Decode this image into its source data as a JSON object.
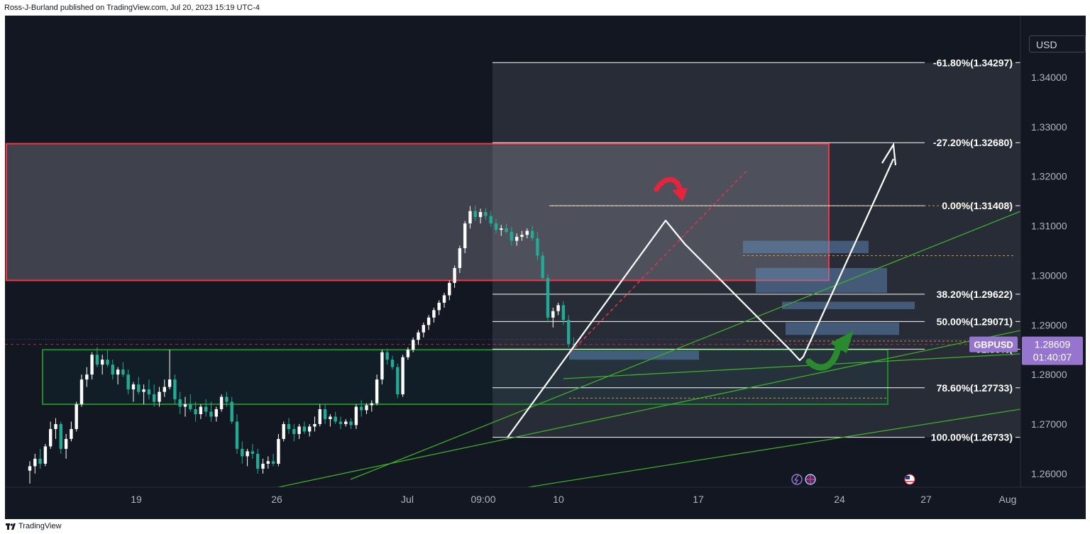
{
  "header": {
    "publisher": "Ross-J-Burland published on TradingView.com, Jul 20, 2023 15:19 UTC-4"
  },
  "footer": {
    "brand": "TradingView"
  },
  "currency_button": "USD",
  "symbol_tag": {
    "symbol": "GBPUSD",
    "price": "1.28609",
    "countdown": "01:40:07"
  },
  "colors": {
    "background": "#131722",
    "up": "#ffffff",
    "down": "#22ab94",
    "fib": "#ffffff",
    "zone_red": "#f23645",
    "zone_green": "#089981",
    "price_tag": "#9575cd"
  },
  "chart_data": {
    "type": "candlestick",
    "instrument": "GBPUSD",
    "ylim": [
      1.255,
      1.35
    ],
    "y_ticks": [
      {
        "value": 1.26,
        "label": "1.26000"
      },
      {
        "value": 1.27,
        "label": "1.27000"
      },
      {
        "value": 1.28,
        "label": "1.28000"
      },
      {
        "value": 1.29,
        "label": "1.29000"
      },
      {
        "value": 1.3,
        "label": "1.30000"
      },
      {
        "value": 1.31,
        "label": "1.31000"
      },
      {
        "value": 1.32,
        "label": "1.32000"
      },
      {
        "value": 1.33,
        "label": "1.33000"
      },
      {
        "value": 1.34,
        "label": "1.34000"
      }
    ],
    "x_ticks": [
      "19",
      "26",
      "Jul",
      "09:00",
      "10",
      "17",
      "24",
      "27",
      "Aug"
    ],
    "current_price": 1.28609,
    "fib_levels": [
      {
        "label": "-61.80%(1.34297)",
        "value": 1.34297
      },
      {
        "label": "-27.20%(1.32680)",
        "value": 1.3268
      },
      {
        "label": "0.00%(1.31408)",
        "value": 1.31408
      },
      {
        "label": "38.20%(1.29622)",
        "value": 1.29622
      },
      {
        "label": "50.00%(1.29071)",
        "value": 1.29071
      },
      {
        "label": "61.80%(",
        "value": 1.28512
      },
      {
        "label": "78.60%(1.27733)",
        "value": 1.27733
      },
      {
        "label": "100.00%(1.26733)",
        "value": 1.26733
      }
    ],
    "zones": [
      {
        "kind": "red",
        "top": 1.3266,
        "bottom": 1.299
      },
      {
        "kind": "green",
        "top": 1.285,
        "bottom": 1.274
      }
    ],
    "candles": [
      [
        1.2606,
        1.2625,
        1.258,
        1.2615
      ],
      [
        1.2615,
        1.264,
        1.26,
        1.263
      ],
      [
        1.263,
        1.265,
        1.261,
        1.262
      ],
      [
        1.262,
        1.266,
        1.2615,
        1.2655
      ],
      [
        1.2655,
        1.2705,
        1.265,
        1.269
      ],
      [
        1.269,
        1.2712,
        1.267,
        1.27
      ],
      [
        1.27,
        1.2705,
        1.264,
        1.265
      ],
      [
        1.265,
        1.268,
        1.263,
        1.267
      ],
      [
        1.267,
        1.2705,
        1.2665,
        1.269
      ],
      [
        1.269,
        1.2745,
        1.2685,
        1.274
      ],
      [
        1.274,
        1.28,
        1.2735,
        1.279
      ],
      [
        1.279,
        1.2815,
        1.2775,
        1.28
      ],
      [
        1.28,
        1.2845,
        1.279,
        1.284
      ],
      [
        1.284,
        1.2855,
        1.2815,
        1.282
      ],
      [
        1.282,
        1.284,
        1.28,
        1.283
      ],
      [
        1.283,
        1.285,
        1.2815,
        1.282
      ],
      [
        1.282,
        1.283,
        1.279,
        1.28
      ],
      [
        1.28,
        1.2815,
        1.278,
        1.281
      ],
      [
        1.281,
        1.2825,
        1.2795,
        1.28
      ],
      [
        1.28,
        1.281,
        1.276,
        1.277
      ],
      [
        1.277,
        1.2785,
        1.2745,
        1.278
      ],
      [
        1.278,
        1.2795,
        1.276,
        1.2765
      ],
      [
        1.2765,
        1.278,
        1.274,
        1.277
      ],
      [
        1.277,
        1.279,
        1.275,
        1.276
      ],
      [
        1.276,
        1.278,
        1.2735,
        1.2745
      ],
      [
        1.2745,
        1.2775,
        1.2735,
        1.2765
      ],
      [
        1.2765,
        1.279,
        1.2755,
        1.2775
      ],
      [
        1.2775,
        1.285,
        1.277,
        1.279
      ],
      [
        1.279,
        1.28,
        1.274,
        1.275
      ],
      [
        1.275,
        1.2765,
        1.272,
        1.2735
      ],
      [
        1.2735,
        1.2755,
        1.2715,
        1.274
      ],
      [
        1.274,
        1.276,
        1.2725,
        1.273
      ],
      [
        1.273,
        1.2745,
        1.2705,
        1.272
      ],
      [
        1.272,
        1.274,
        1.271,
        1.2735
      ],
      [
        1.2735,
        1.275,
        1.2715,
        1.2725
      ],
      [
        1.2725,
        1.2745,
        1.2705,
        1.2715
      ],
      [
        1.2715,
        1.2735,
        1.2705,
        1.273
      ],
      [
        1.273,
        1.276,
        1.2725,
        1.2755
      ],
      [
        1.2755,
        1.2765,
        1.2735,
        1.2745
      ],
      [
        1.2745,
        1.2755,
        1.27,
        1.2705
      ],
      [
        1.2705,
        1.272,
        1.264,
        1.265
      ],
      [
        1.265,
        1.2665,
        1.262,
        1.2635
      ],
      [
        1.2635,
        1.265,
        1.2615,
        1.2645
      ],
      [
        1.2645,
        1.266,
        1.263,
        1.264
      ],
      [
        1.264,
        1.265,
        1.26,
        1.261
      ],
      [
        1.261,
        1.263,
        1.26,
        1.262
      ],
      [
        1.262,
        1.2635,
        1.261,
        1.2625
      ],
      [
        1.2625,
        1.264,
        1.2615,
        1.262
      ],
      [
        1.262,
        1.268,
        1.2615,
        1.267
      ],
      [
        1.267,
        1.2705,
        1.2665,
        1.27
      ],
      [
        1.27,
        1.2712,
        1.268,
        1.269
      ],
      [
        1.269,
        1.27,
        1.2665,
        1.268
      ],
      [
        1.268,
        1.27,
        1.267,
        1.2695
      ],
      [
        1.2695,
        1.2705,
        1.268,
        1.2685
      ],
      [
        1.2685,
        1.27,
        1.2675,
        1.2695
      ],
      [
        1.2695,
        1.2715,
        1.2685,
        1.27
      ],
      [
        1.27,
        1.274,
        1.2695,
        1.273
      ],
      [
        1.273,
        1.274,
        1.27,
        1.271
      ],
      [
        1.271,
        1.272,
        1.2695,
        1.2715
      ],
      [
        1.2715,
        1.2725,
        1.27,
        1.2705
      ],
      [
        1.2705,
        1.2715,
        1.269,
        1.27
      ],
      [
        1.27,
        1.271,
        1.2695,
        1.2705
      ],
      [
        1.2705,
        1.2712,
        1.269,
        1.2698
      ],
      [
        1.2698,
        1.274,
        1.269,
        1.2735
      ],
      [
        1.2735,
        1.2748,
        1.2715,
        1.2728
      ],
      [
        1.2728,
        1.2742,
        1.272,
        1.2738
      ],
      [
        1.2738,
        1.2748,
        1.2725,
        1.2742
      ],
      [
        1.2742,
        1.28,
        1.2738,
        1.279
      ],
      [
        1.279,
        1.285,
        1.278,
        1.2845
      ],
      [
        1.2845,
        1.2852,
        1.282,
        1.283
      ],
      [
        1.283,
        1.2838,
        1.281,
        1.2815
      ],
      [
        1.2815,
        1.2822,
        1.2752,
        1.276
      ],
      [
        1.276,
        1.284,
        1.2755,
        1.2835
      ],
      [
        1.2835,
        1.2855,
        1.283,
        1.285
      ],
      [
        1.285,
        1.2875,
        1.2845,
        1.287
      ],
      [
        1.287,
        1.289,
        1.286,
        1.2885
      ],
      [
        1.2885,
        1.2905,
        1.2875,
        1.29
      ],
      [
        1.29,
        1.292,
        1.289,
        1.2915
      ],
      [
        1.2915,
        1.2935,
        1.2905,
        1.293
      ],
      [
        1.293,
        1.295,
        1.292,
        1.2945
      ],
      [
        1.2945,
        1.2965,
        1.2935,
        1.296
      ],
      [
        1.296,
        1.299,
        1.295,
        1.2985
      ],
      [
        1.2985,
        1.302,
        1.2975,
        1.3015
      ],
      [
        1.3015,
        1.306,
        1.3005,
        1.3055
      ],
      [
        1.3055,
        1.311,
        1.3045,
        1.3105
      ],
      [
        1.3105,
        1.314,
        1.3095,
        1.313
      ],
      [
        1.313,
        1.3141,
        1.311,
        1.3118
      ],
      [
        1.3118,
        1.3135,
        1.3105,
        1.3128
      ],
      [
        1.3128,
        1.3136,
        1.3112,
        1.312
      ],
      [
        1.312,
        1.313,
        1.3098,
        1.3105
      ],
      [
        1.3105,
        1.3115,
        1.3085,
        1.3092
      ],
      [
        1.3092,
        1.3102,
        1.308,
        1.3095
      ],
      [
        1.3095,
        1.3105,
        1.3085,
        1.3088
      ],
      [
        1.3088,
        1.3098,
        1.306,
        1.307
      ],
      [
        1.307,
        1.3085,
        1.306,
        1.3078
      ],
      [
        1.3078,
        1.309,
        1.307,
        1.3082
      ],
      [
        1.3082,
        1.3095,
        1.3075,
        1.309
      ],
      [
        1.309,
        1.31,
        1.307,
        1.3075
      ],
      [
        1.3075,
        1.3088,
        1.303,
        1.304
      ],
      [
        1.304,
        1.3048,
        1.299,
        1.2995
      ],
      [
        1.2995,
        1.3002,
        1.2905,
        1.2915
      ],
      [
        1.2915,
        1.2935,
        1.2895,
        1.2928
      ],
      [
        1.2928,
        1.2945,
        1.292,
        1.294
      ],
      [
        1.294,
        1.2948,
        1.29,
        1.291
      ],
      [
        1.291,
        1.292,
        1.2855,
        1.2862
      ],
      [
        1.2862,
        1.2875,
        1.285,
        1.2861
      ]
    ],
    "annotations": [
      "white zigzag projection arrow from swing low to 1.3268",
      "red curved arrow near the 1.3141 top",
      "green curved arrow rising from 61.8% retracement",
      "three rising green trend lines"
    ]
  }
}
